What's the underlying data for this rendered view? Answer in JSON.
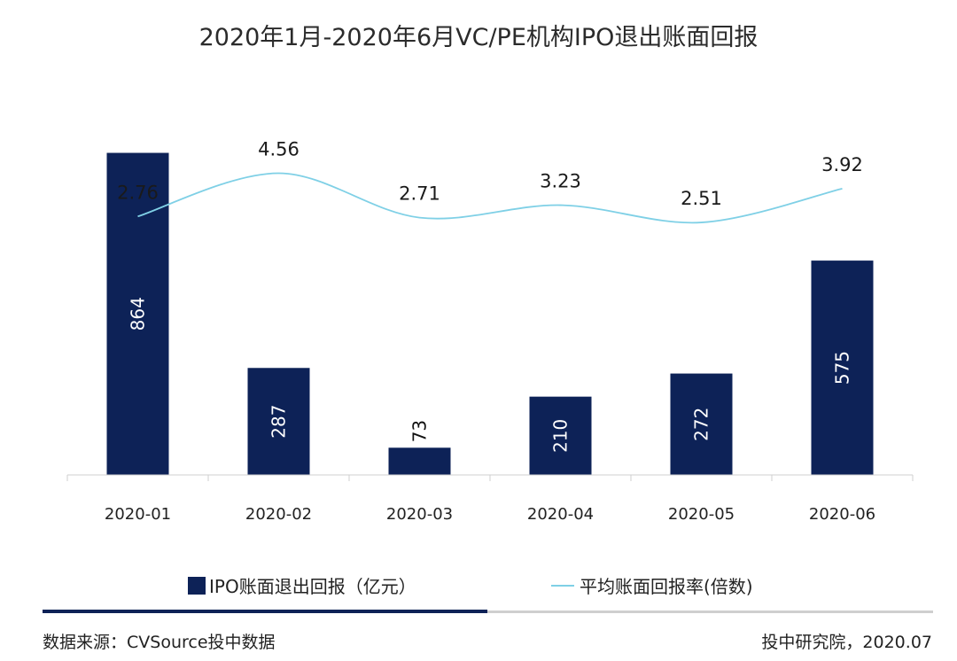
{
  "chart_data": {
    "type": "bar",
    "title": "2020年1月-2020年6月VC/PE机构IPO退出账面回报",
    "categories": [
      "2020-01",
      "2020-02",
      "2020-03",
      "2020-04",
      "2020-05",
      "2020-06"
    ],
    "series": [
      {
        "name": "IPO账面退出回报（亿元）",
        "type": "bar",
        "values": [
          864,
          287,
          73,
          210,
          272,
          575
        ],
        "color": "#0d2257"
      },
      {
        "name": "平均账面回报率(倍数)",
        "type": "line",
        "values": [
          2.76,
          4.56,
          2.71,
          3.23,
          2.51,
          3.92
        ],
        "color": "#7fd0e6"
      }
    ],
    "ylim": [
      0,
      870
    ],
    "y2lim": [
      -8.0,
      5.5
    ],
    "legend_position": "bottom",
    "grid": false
  },
  "footer": {
    "source": "数据来源：CVSource投中数据",
    "credit": "投中研究院，2020.07"
  },
  "colors": {
    "bar": "#0d2257",
    "line": "#7fd0e6"
  }
}
